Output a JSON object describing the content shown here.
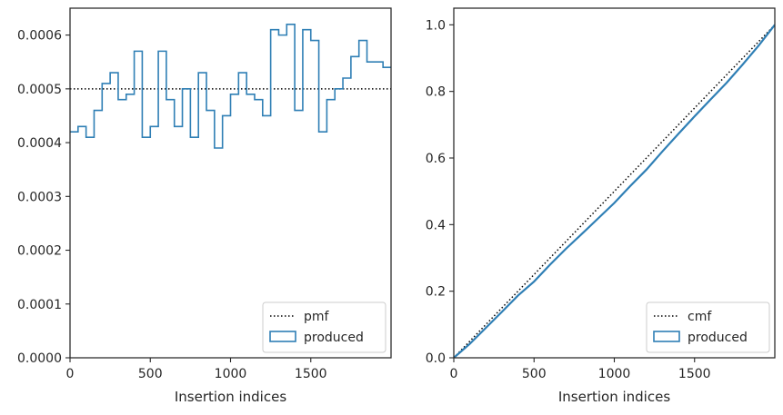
{
  "chart_data": [
    {
      "type": "histogram",
      "xlabel": "Insertion indices",
      "xlim": [
        0,
        2000
      ],
      "ylim": [
        0,
        0.00065
      ],
      "xticks": [
        0,
        500,
        1000,
        1500
      ],
      "xtick_labels": [
        "0",
        "500",
        "1000",
        "1500"
      ],
      "yticks": [
        0,
        0.0001,
        0.0002,
        0.0003,
        0.0004,
        0.0005,
        0.0006
      ],
      "ytick_labels": [
        "0.0000",
        "0.0001",
        "0.0002",
        "0.0003",
        "0.0004",
        "0.0005",
        "0.0006"
      ],
      "legend_position": "lower-right",
      "series": [
        {
          "name": "pmf",
          "style": "dotted-line",
          "color": "#000000",
          "x": [
            0,
            2000
          ],
          "values": [
            0.0005,
            0.0005
          ]
        },
        {
          "name": "produced",
          "style": "step",
          "color": "#2f7fb5",
          "bin_edges": [
            0,
            50,
            100,
            150,
            200,
            250,
            300,
            350,
            400,
            450,
            500,
            550,
            600,
            650,
            700,
            750,
            800,
            850,
            900,
            950,
            1000,
            1050,
            1100,
            1150,
            1200,
            1250,
            1300,
            1350,
            1400,
            1450,
            1500,
            1550,
            1600,
            1650,
            1700,
            1750,
            1800,
            1850,
            1900,
            1950,
            2000
          ],
          "values": [
            0.00042,
            0.00043,
            0.00041,
            0.00046,
            0.00051,
            0.00053,
            0.00048,
            0.00049,
            0.00057,
            0.00041,
            0.00043,
            0.00057,
            0.00048,
            0.00043,
            0.0005,
            0.00041,
            0.00053,
            0.00046,
            0.00039,
            0.00045,
            0.00049,
            0.00053,
            0.00049,
            0.00048,
            0.00045,
            0.00061,
            0.0006,
            0.00062,
            0.00046,
            0.00061,
            0.00059,
            0.00042,
            0.00048,
            0.0005,
            0.00052,
            0.00056,
            0.00059,
            0.00055,
            0.00055,
            0.00054
          ]
        }
      ]
    },
    {
      "type": "line",
      "xlabel": "Insertion indices",
      "xlim": [
        0,
        2000
      ],
      "ylim": [
        0,
        1.05
      ],
      "xticks": [
        0,
        500,
        1000,
        1500
      ],
      "xtick_labels": [
        "0",
        "500",
        "1000",
        "1500"
      ],
      "yticks": [
        0,
        0.2,
        0.4,
        0.6,
        0.8,
        1.0
      ],
      "ytick_labels": [
        "0.0",
        "0.2",
        "0.4",
        "0.6",
        "0.8",
        "1.0"
      ],
      "legend_position": "lower-right",
      "series": [
        {
          "name": "cmf",
          "style": "dotted-line",
          "color": "#000000",
          "x": [
            0,
            2000
          ],
          "values": [
            0,
            1.0
          ]
        },
        {
          "name": "produced",
          "style": "line",
          "color": "#2f7fb5",
          "x": [
            0,
            100,
            200,
            300,
            400,
            500,
            600,
            700,
            800,
            900,
            1000,
            1100,
            1200,
            1300,
            1400,
            1500,
            1600,
            1700,
            1800,
            1900,
            2000
          ],
          "values": [
            0,
            0.042,
            0.09,
            0.138,
            0.187,
            0.229,
            0.28,
            0.328,
            0.373,
            0.419,
            0.465,
            0.516,
            0.565,
            0.62,
            0.673,
            0.725,
            0.776,
            0.826,
            0.881,
            0.938,
            1.0
          ]
        }
      ]
    }
  ]
}
